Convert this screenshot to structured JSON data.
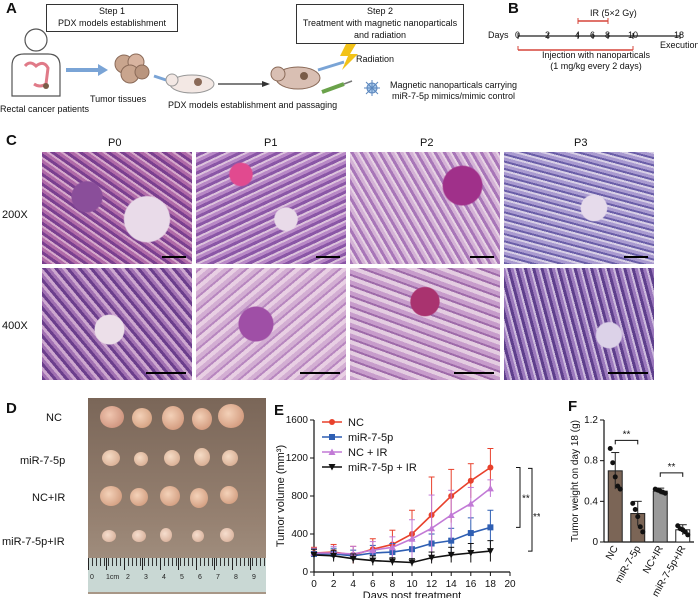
{
  "panels": {
    "a": "A",
    "b": "B",
    "c": "C",
    "d": "D",
    "e": "E",
    "f": "F"
  },
  "panel_a": {
    "step1_line1": "Step 1",
    "step1_line2": "PDX models establishment",
    "step2_line1": "Step 2",
    "step2_line2": "Treatment with magnetic nanoparticals",
    "step2_line3": "and radiation",
    "patient_label": "Rectal cancer patients",
    "tissue_label": "Tumor tissues",
    "passaging_label": "PDX models establishment and passaging",
    "radiation_label": "Radiation",
    "nano_line1": "Magnetic nanoparticals carrying",
    "nano_line2": "miR-7-5p mimics/mimic control"
  },
  "panel_b": {
    "ir_label": "IR (5×2 Gy)",
    "days_label": "Days",
    "ticks": [
      "0",
      "2",
      "4",
      "6",
      "8",
      "10",
      "18"
    ],
    "execution_label": "Execution",
    "injection_line1": "Injection with nanoparticals",
    "injection_line2": "(1 mg/kg every 2 days)"
  },
  "panel_c": {
    "columns": [
      "P0",
      "P1",
      "P2",
      "P3"
    ],
    "rows": [
      "200X",
      "400X"
    ],
    "colors": {
      "stain_pink": "#d98fb8",
      "stain_purple": "#6b3e8c"
    }
  },
  "panel_d": {
    "rows": [
      "NC",
      "miR-7-5p",
      "NC+IR",
      "miR-7-5p+IR"
    ],
    "ruler_ticks": [
      "0",
      "1cm",
      "2",
      "3",
      "4",
      "5",
      "6",
      "7",
      "8",
      "9"
    ]
  },
  "chart_data": [
    {
      "type": "line",
      "panel": "E",
      "xlabel": "Days post treatment",
      "ylabel": "Tumor volume (mm³)",
      "x": [
        0,
        2,
        4,
        6,
        8,
        10,
        12,
        14,
        16,
        18
      ],
      "xlim": [
        0,
        20
      ],
      "xticks": [
        "0",
        "2",
        "4",
        "6",
        "8",
        "10",
        "12",
        "14",
        "16",
        "18",
        "20"
      ],
      "ylim": [
        0,
        1600
      ],
      "yticks": [
        "0",
        "400",
        "800",
        "1200",
        "1600"
      ],
      "legend_position": "top-left",
      "significance": [
        "**",
        "**"
      ],
      "series": [
        {
          "name": "NC",
          "color": "#e8412c",
          "marker": "circle",
          "values": [
            200,
            210,
            180,
            240,
            290,
            400,
            600,
            800,
            960,
            1100
          ],
          "errors": [
            60,
            80,
            90,
            110,
            150,
            250,
            400,
            280,
            180,
            200
          ]
        },
        {
          "name": "miR-7-5p",
          "color": "#2f5fb3",
          "marker": "square",
          "values": [
            190,
            190,
            170,
            200,
            210,
            240,
            300,
            330,
            410,
            470
          ],
          "errors": [
            50,
            60,
            60,
            80,
            90,
            100,
            100,
            130,
            160,
            180
          ]
        },
        {
          "name": "NC + IR",
          "color": "#c27ad6",
          "marker": "triangle-up",
          "values": [
            200,
            200,
            190,
            230,
            260,
            350,
            460,
            600,
            720,
            880
          ],
          "errors": [
            50,
            70,
            80,
            90,
            110,
            200,
            350,
            260,
            170,
            90
          ]
        },
        {
          "name": "miR-7-5p + IR",
          "color": "#111111",
          "marker": "triangle-down",
          "values": [
            180,
            170,
            140,
            120,
            110,
            100,
            150,
            180,
            200,
            220
          ],
          "errors": [
            60,
            60,
            50,
            50,
            40,
            40,
            60,
            80,
            100,
            110
          ]
        }
      ]
    },
    {
      "type": "bar",
      "panel": "F",
      "ylabel": "Tumor weight on day 18 (g)",
      "categories": [
        "NC",
        "miR-7-5p",
        "NC+IR",
        "miR-7-5p+IR"
      ],
      "values": [
        0.7,
        0.28,
        0.5,
        0.12
      ],
      "errors": [
        0.18,
        0.12,
        0.03,
        0.05
      ],
      "ylim": [
        0,
        1.2
      ],
      "yticks": [
        "0",
        "0.4",
        "0.8",
        "1.2"
      ],
      "bar_colors": [
        "#7b6556",
        "#7b6556",
        "#9a9a9a",
        "#ffffff"
      ],
      "points": [
        [
          0.92,
          0.78,
          0.64,
          0.55,
          0.52
        ],
        [
          0.38,
          0.32,
          0.25,
          0.15,
          0.1
        ],
        [
          0.52,
          0.51,
          0.5,
          0.49,
          0.48
        ],
        [
          0.16,
          0.13,
          0.12,
          0.1,
          0.07
        ]
      ],
      "significance": [
        "**",
        "**"
      ]
    }
  ]
}
